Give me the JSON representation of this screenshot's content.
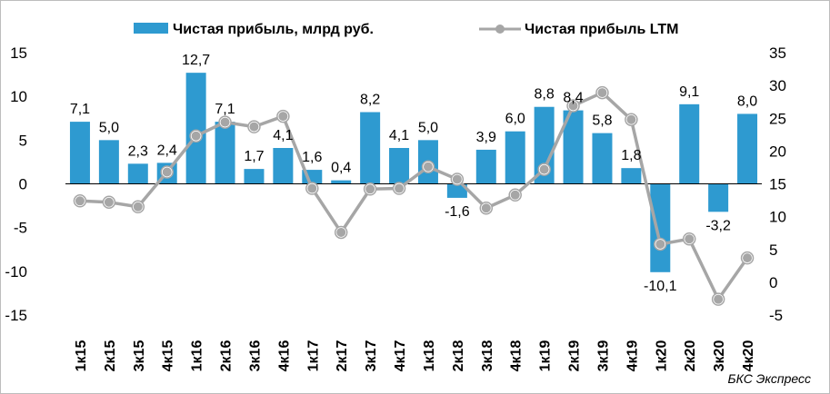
{
  "chart_data": {
    "type": "bar",
    "categories": [
      "1к15",
      "2к15",
      "3к15",
      "4к15",
      "1к16",
      "2к16",
      "3к16",
      "4к16",
      "1к17",
      "2к17",
      "3к17",
      "4к17",
      "1к18",
      "2к18",
      "3к18",
      "4к18",
      "1к19",
      "2к19",
      "3к19",
      "4к19",
      "1к20",
      "2к20",
      "3к20",
      "4к20"
    ],
    "series": [
      {
        "name": "Чистая прибыль, млрд руб.",
        "type": "bar",
        "axis": "left",
        "color": "#2e9ad0",
        "values": [
          7.1,
          5.0,
          2.3,
          2.4,
          12.7,
          7.1,
          1.7,
          4.1,
          1.6,
          0.4,
          8.2,
          4.1,
          5.0,
          -1.6,
          3.9,
          6.0,
          8.8,
          8.4,
          5.8,
          1.8,
          -10.1,
          9.1,
          -3.2,
          8.0
        ],
        "labels": [
          "7,1",
          "5,0",
          "2,3",
          "2,4",
          "12,7",
          "7,1",
          "1,7",
          "4,1",
          "1,6",
          "0,4",
          "8,2",
          "4,1",
          "5,0",
          "-1,6",
          "3,9",
          "6,0",
          "8,8",
          "8,4",
          "5,8",
          "1,8",
          "-10,1",
          "9,1",
          "-3,2",
          "8,0"
        ]
      },
      {
        "name": "Чистая прибыль LTM",
        "type": "line",
        "axis": "right",
        "color": "#a6a6a6",
        "values": [
          12.4,
          12.2,
          11.5,
          16.8,
          22.3,
          24.4,
          23.7,
          25.3,
          14.3,
          7.6,
          14.2,
          14.3,
          17.6,
          15.7,
          11.3,
          13.3,
          17.2,
          26.9,
          28.9,
          24.8,
          5.8,
          6.6,
          -2.6,
          3.7
        ]
      }
    ],
    "y_left": {
      "min": -15,
      "max": 15,
      "ticks": [
        "15",
        "10",
        "5",
        "0",
        "-5",
        "-10",
        "-15"
      ]
    },
    "y_right": {
      "min": -5,
      "max": 35,
      "ticks": [
        "35",
        "30",
        "25",
        "20",
        "15",
        "10",
        "5",
        "0",
        "-5"
      ]
    },
    "legend_position": "top",
    "grid": false,
    "source": "БКС Экспресс"
  }
}
